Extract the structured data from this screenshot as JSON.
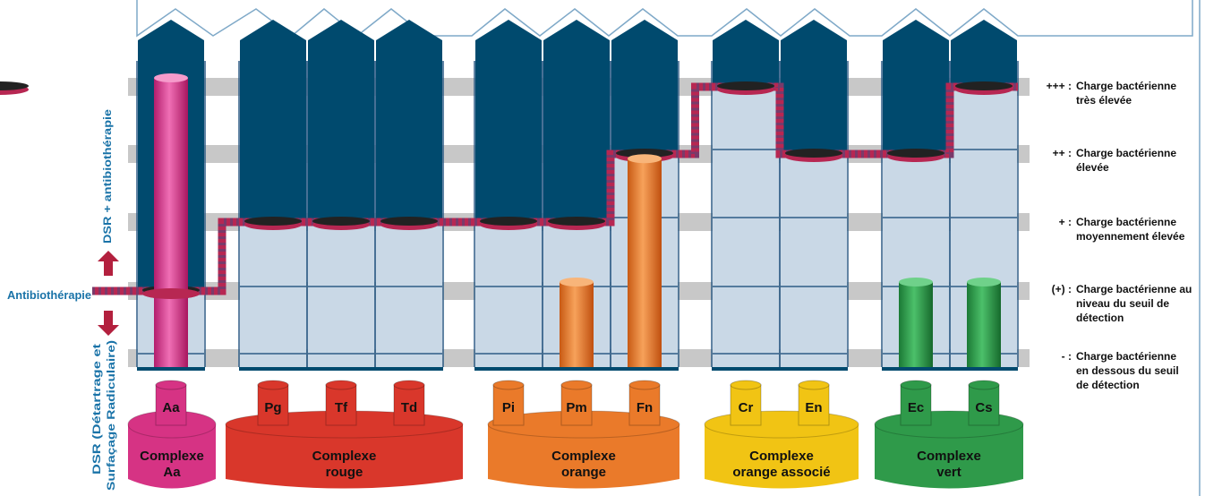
{
  "left_labels": {
    "antibiotic": "Antibiothérapie",
    "dsr_antibio": "DSR + antibiothérapie",
    "dsr_line1": "DSR (Détartrage et",
    "dsr_line2": "Surfaçage Radiculaire)"
  },
  "legend": [
    {
      "symbol": "+++ :",
      "line1": "Charge bactérienne",
      "line2": "très élevée",
      "line3": ""
    },
    {
      "symbol": "++ :",
      "line1": "Charge bactérienne",
      "line2": "élevée",
      "line3": ""
    },
    {
      "symbol": "+ :",
      "line1": "Charge bactérienne",
      "line2": "moyennement élevée",
      "line3": ""
    },
    {
      "symbol": "(+) :",
      "line1": "Charge bactérienne au",
      "line2": "niveau du seuil de",
      "line3": "détection"
    },
    {
      "symbol": "- :",
      "line1": "Charge bactérienne",
      "line2": "en dessous du seuil",
      "line3": "de détection"
    }
  ],
  "complexes": [
    {
      "line1": "Complexe",
      "line2": "Aa",
      "color": "#d63384",
      "bacteria": [
        {
          "abbr": "Aa",
          "level": 4.3
        }
      ]
    },
    {
      "line1": "Complexe",
      "line2": "rouge",
      "color": "#d9372b",
      "bacteria": [
        {
          "abbr": "Pg",
          "level": 0
        },
        {
          "abbr": "Tf",
          "level": 0
        },
        {
          "abbr": "Td",
          "level": 0
        }
      ]
    },
    {
      "line1": "Complexe",
      "line2": "orange",
      "color": "#ea7a2a",
      "bacteria": [
        {
          "abbr": "Pi",
          "level": 0
        },
        {
          "abbr": "Pm",
          "level": 1
        },
        {
          "abbr": "Fn",
          "level": 2.8
        }
      ]
    },
    {
      "line1": "Complexe",
      "line2": "orange associé",
      "color": "#f1c414",
      "bacteria": [
        {
          "abbr": "Cr",
          "level": 0
        },
        {
          "abbr": "En",
          "level": 0
        }
      ]
    },
    {
      "line1": "Complexe",
      "line2": "vert",
      "color": "#2f9a4a",
      "bacteria": [
        {
          "abbr": "Ec",
          "level": 1
        },
        {
          "abbr": "Cs",
          "level": 1
        }
      ]
    }
  ],
  "threshold_levels": [
    1,
    2,
    2,
    2,
    2,
    2,
    3,
    4,
    3,
    3,
    4,
    4
  ],
  "colors": {
    "dark_blue": "#004a6e",
    "light_blue": "#c9d8e6",
    "grid_line": "#2e5c86",
    "band": "#c8c8c8",
    "label_blue": "#1a73a8",
    "arrow_red": "#b3203e",
    "line_red": "#b72752",
    "line_dash": "#7a3a6a"
  }
}
